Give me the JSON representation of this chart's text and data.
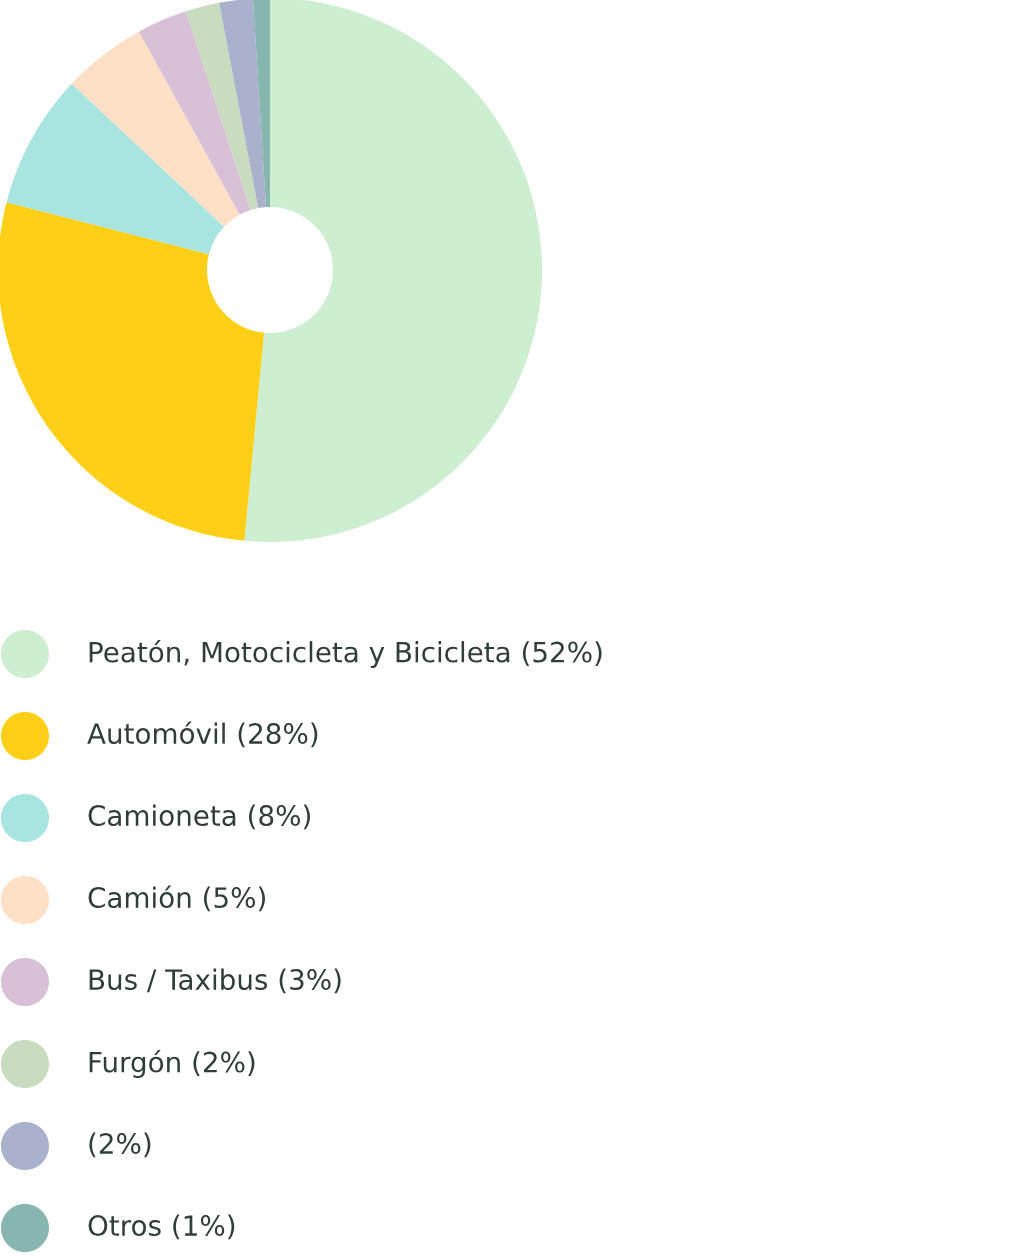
{
  "chart_data": {
    "type": "donut",
    "categories": [
      "Peatón, Motocicleta y Bicicleta (52%)",
      "Automóvil (28%)",
      "Camioneta (8%)",
      "Camión (5%)",
      "Bus / Taxibus (3%)",
      "Furgón (2%)",
      "(2%)",
      "Otros (1%)"
    ],
    "values": [
      51.5,
      27.5,
      8,
      5,
      3,
      2,
      2,
      1
    ],
    "colors": [
      "#cdeed0",
      "#fdd017",
      "#a8e4e0",
      "#fde0c5",
      "#d8c0d6",
      "#c9dcbf",
      "#a9b1cc",
      "#87b5b0"
    ],
    "legend": "bottom"
  }
}
